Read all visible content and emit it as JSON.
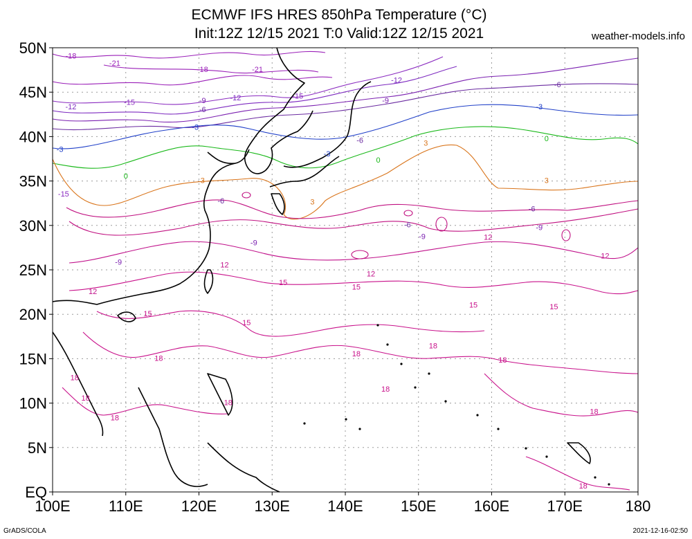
{
  "header": {
    "title_line1": "ECMWF IFS HRES 850hPa Temperature (°C)",
    "title_line2": "Init:12Z 12/15 2021 T:0 Valid:12Z 12/15 2021",
    "site": "weather-models.info"
  },
  "footer": {
    "left": "GrADS/COLA",
    "right": "2021-12-16-02:50"
  },
  "map": {
    "lat_labels": [
      "EQ",
      "5N",
      "10N",
      "15N",
      "20N",
      "25N",
      "30N",
      "35N",
      "40N",
      "45N",
      "50N"
    ],
    "lon_labels": [
      "100E",
      "110E",
      "120E",
      "130E",
      "140E",
      "150E",
      "160E",
      "170E",
      "180"
    ],
    "contour_colors": {
      "-21": "#9a1fb8",
      "-18": "#9a1fb8",
      "-15": "#8a2bc0",
      "-12": "#7d2ac0",
      "-9": "#7a1fb0",
      "-6": "#6a2aa0",
      "-3": "#1f3fc8",
      "0": "#18b818",
      "3": "#d9741a",
      "6": "#c01080",
      "9": "#c01080",
      "12": "#c0108a",
      "15": "#c8108a",
      "18": "#c8108a"
    },
    "contour_labels": [
      {
        "text": "-18",
        "lon": 102.5,
        "lat": 49.0
      },
      {
        "text": "-21",
        "lon": 108.5,
        "lat": 48.2
      },
      {
        "text": "-18",
        "lon": 120.5,
        "lat": 47.5
      },
      {
        "text": "-21",
        "lon": 128.0,
        "lat": 47.5
      },
      {
        "text": "-12",
        "lon": 147.0,
        "lat": 46.3
      },
      {
        "text": "-15",
        "lon": 133.5,
        "lat": 44.5
      },
      {
        "text": "-9",
        "lon": 145.5,
        "lat": 44.0
      },
      {
        "text": "-6",
        "lon": 169.0,
        "lat": 45.8
      },
      {
        "text": "-15",
        "lon": 110.5,
        "lat": 43.8
      },
      {
        "text": "-12",
        "lon": 102.5,
        "lat": 43.3
      },
      {
        "text": "-9",
        "lon": 120.5,
        "lat": 44.0
      },
      {
        "text": "-12",
        "lon": 125.0,
        "lat": 44.3
      },
      {
        "text": "-6",
        "lon": 120.5,
        "lat": 43.0
      },
      {
        "text": "-3",
        "lon": 166.5,
        "lat": 43.3
      },
      {
        "text": "-3",
        "lon": 119.5,
        "lat": 41.0
      },
      {
        "text": "-6",
        "lon": 142.0,
        "lat": 39.5
      },
      {
        "text": "-3",
        "lon": 101.0,
        "lat": 38.5
      },
      {
        "text": "-3",
        "lon": 137.5,
        "lat": 38.0
      },
      {
        "text": "0",
        "lon": 167.5,
        "lat": 39.7
      },
      {
        "text": "0",
        "lon": 144.5,
        "lat": 37.3
      },
      {
        "text": "0",
        "lon": 110.0,
        "lat": 35.5
      },
      {
        "text": "3",
        "lon": 151.0,
        "lat": 39.2
      },
      {
        "text": "3",
        "lon": 120.5,
        "lat": 35.0
      },
      {
        "text": "3",
        "lon": 135.5,
        "lat": 32.6
      },
      {
        "text": "3",
        "lon": 167.5,
        "lat": 35.0
      },
      {
        "text": "-15",
        "lon": 101.5,
        "lat": 33.5
      },
      {
        "text": "-6",
        "lon": 123.0,
        "lat": 32.7
      },
      {
        "text": "-6",
        "lon": 165.5,
        "lat": 31.8
      },
      {
        "text": "-6",
        "lon": 148.5,
        "lat": 30.0
      },
      {
        "text": "-9",
        "lon": 166.5,
        "lat": 29.7
      },
      {
        "text": "-9",
        "lon": 150.5,
        "lat": 28.7
      },
      {
        "text": "-9",
        "lon": 127.5,
        "lat": 28.0
      },
      {
        "text": "-9",
        "lon": 109.0,
        "lat": 25.8
      },
      {
        "text": "12",
        "lon": 159.5,
        "lat": 28.6
      },
      {
        "text": "12",
        "lon": 123.5,
        "lat": 25.5
      },
      {
        "text": "12",
        "lon": 143.5,
        "lat": 24.5
      },
      {
        "text": "12",
        "lon": 175.5,
        "lat": 26.5
      },
      {
        "text": "12",
        "lon": 105.5,
        "lat": 22.5
      },
      {
        "text": "15",
        "lon": 131.5,
        "lat": 23.5
      },
      {
        "text": "15",
        "lon": 141.5,
        "lat": 23.0
      },
      {
        "text": "15",
        "lon": 157.5,
        "lat": 21.0
      },
      {
        "text": "15",
        "lon": 168.5,
        "lat": 20.8
      },
      {
        "text": "15",
        "lon": 113.0,
        "lat": 20.0
      },
      {
        "text": "15",
        "lon": 126.5,
        "lat": 19.0
      },
      {
        "text": "18",
        "lon": 152.0,
        "lat": 16.4
      },
      {
        "text": "18",
        "lon": 141.5,
        "lat": 15.5
      },
      {
        "text": "18",
        "lon": 161.5,
        "lat": 14.8
      },
      {
        "text": "18",
        "lon": 114.5,
        "lat": 15.0
      },
      {
        "text": "18",
        "lon": 103.0,
        "lat": 12.8
      },
      {
        "text": "18",
        "lon": 145.5,
        "lat": 11.5
      },
      {
        "text": "18",
        "lon": 104.5,
        "lat": 10.5
      },
      {
        "text": "18",
        "lon": 124.0,
        "lat": 10.0
      },
      {
        "text": "18",
        "lon": 108.5,
        "lat": 8.3
      },
      {
        "text": "18",
        "lon": 174.0,
        "lat": 9.0
      },
      {
        "text": "18",
        "lon": 172.5,
        "lat": 0.6
      }
    ]
  }
}
